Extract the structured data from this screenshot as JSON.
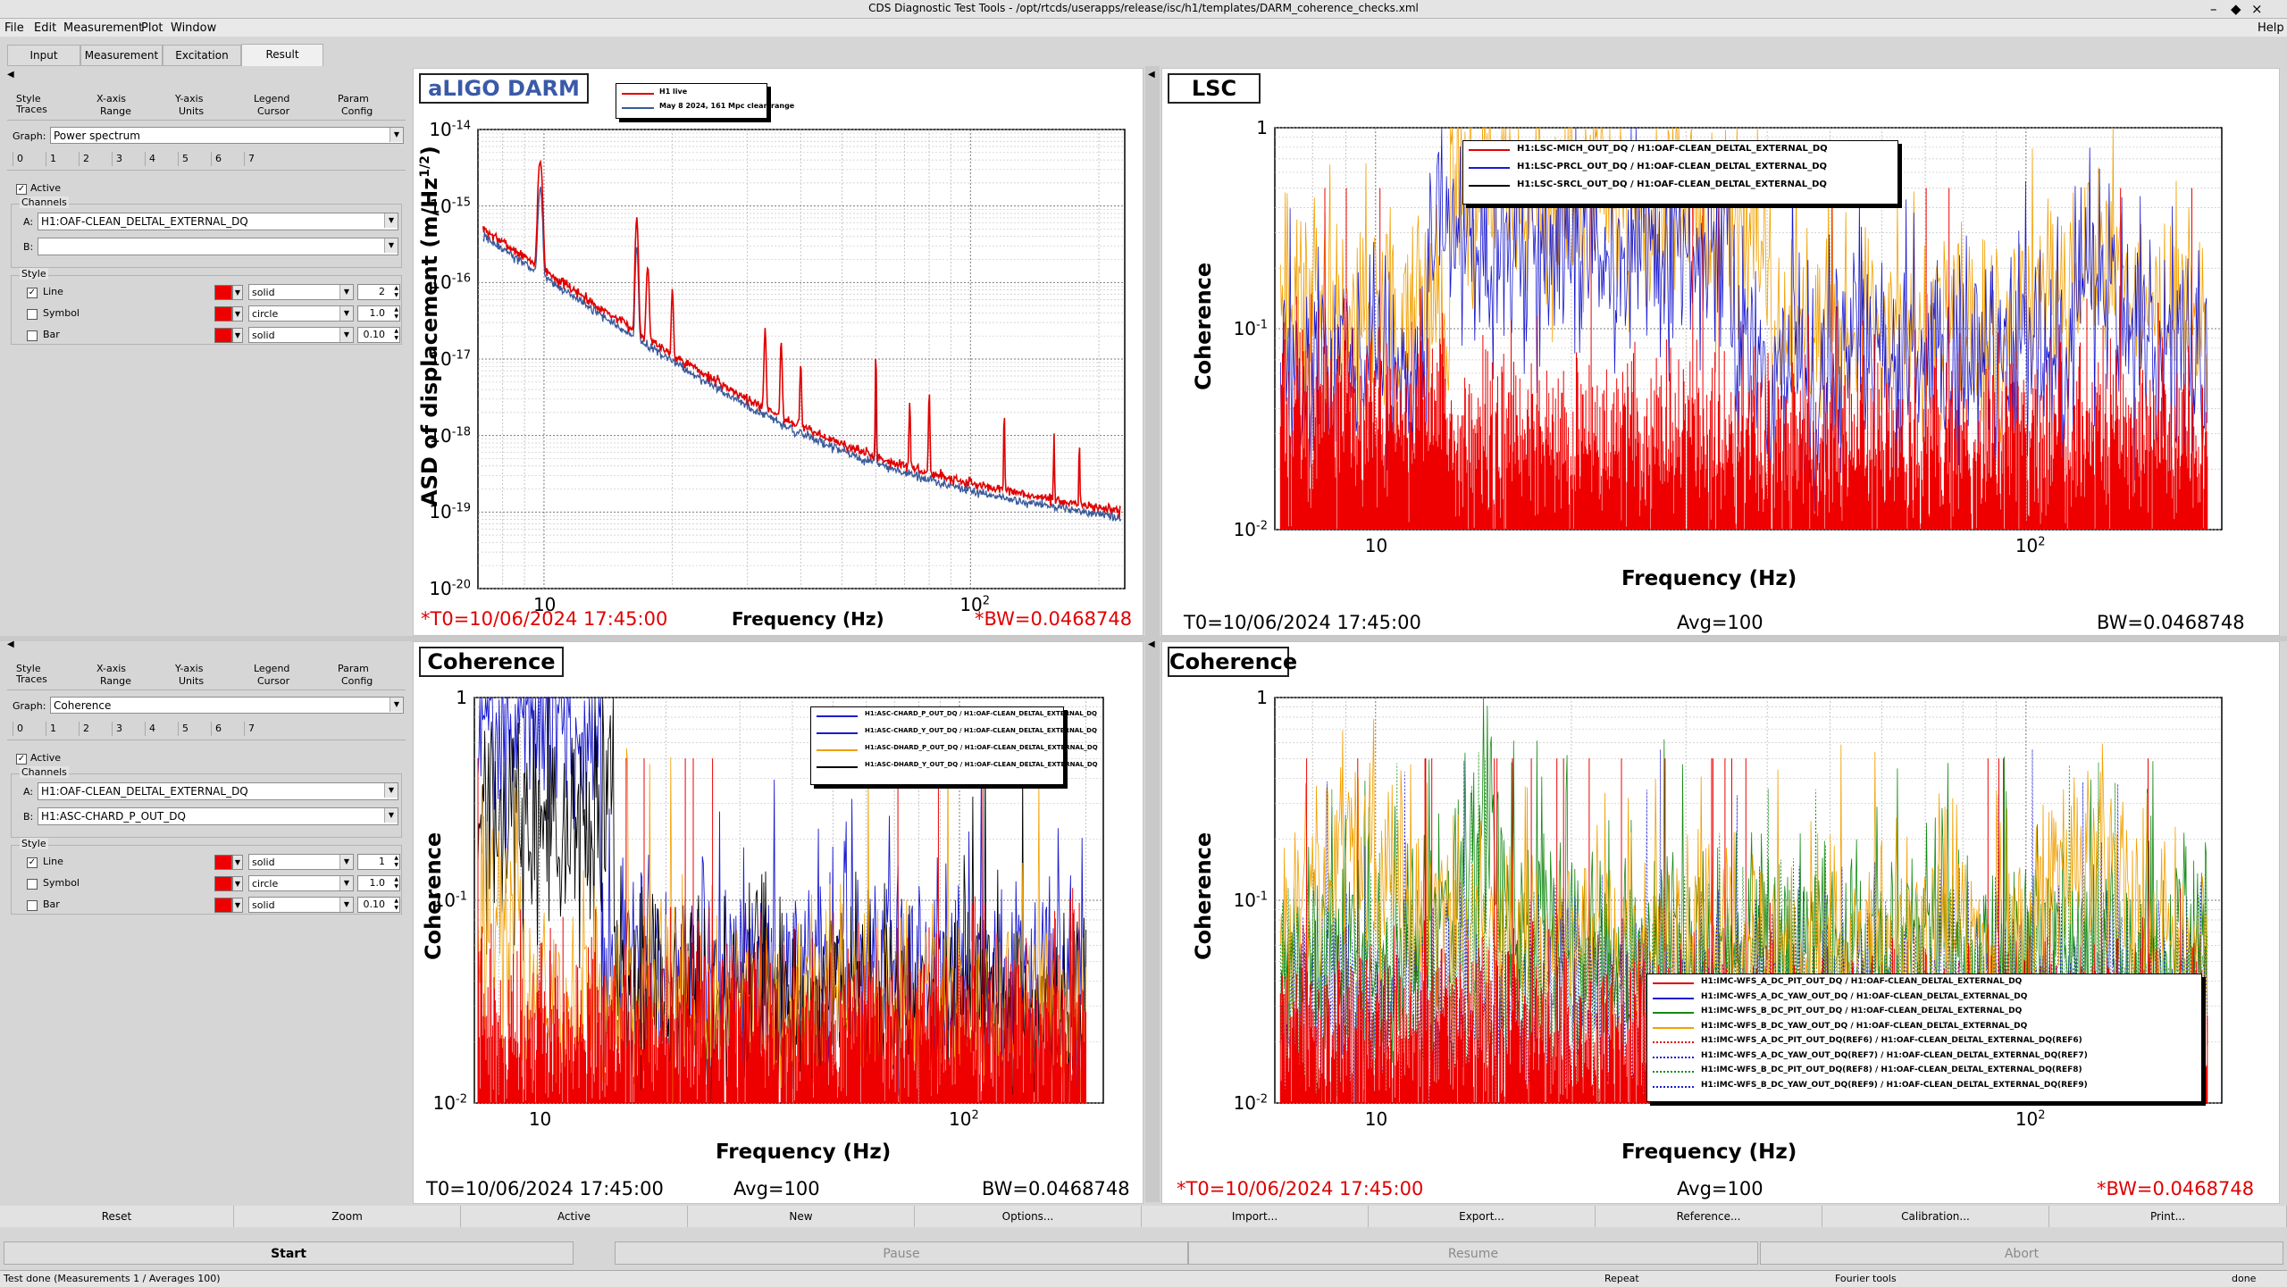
{
  "window": {
    "title": "CDS Diagnostic Test Tools - /opt/rtcds/userapps/release/isc/h1/templates/DARM_coherence_checks.xml"
  },
  "menu": [
    "File",
    "Edit",
    "Measurement",
    "Plot",
    "Window"
  ],
  "help": "Help",
  "tabs": [
    "Input",
    "Measurement",
    "Excitation",
    "Result"
  ],
  "options_panels": [
    {
      "tabs_top": [
        "Style",
        "X-axis",
        "Y-axis",
        "Legend",
        "Param"
      ],
      "tabs_bottom": [
        "Traces",
        "Range",
        "Units",
        "Cursor",
        "Config"
      ],
      "graph_label": "Graph:",
      "graph": "Power spectrum",
      "trace_numbers": [
        "0",
        "1",
        "2",
        "3",
        "4",
        "5",
        "6",
        "7"
      ],
      "active_label": "Active",
      "channels_label": "Channels",
      "a_label": "A:",
      "b_label": "B:",
      "channel_a": "H1:OAF-CLEAN_DELTAL_EXTERNAL_DQ",
      "channel_b": "",
      "style_label": "Style",
      "styles": [
        {
          "label": "Line",
          "type": "solid",
          "value": "2",
          "checked": true
        },
        {
          "label": "Symbol",
          "type": "circle",
          "value": "1.0",
          "checked": false
        },
        {
          "label": "Bar",
          "type": "solid",
          "value": "0.10",
          "checked": false
        }
      ]
    },
    {
      "tabs_top": [
        "Style",
        "X-axis",
        "Y-axis",
        "Legend",
        "Param"
      ],
      "tabs_bottom": [
        "Traces",
        "Range",
        "Units",
        "Cursor",
        "Config"
      ],
      "graph_label": "Graph:",
      "graph": "Coherence",
      "trace_numbers": [
        "0",
        "1",
        "2",
        "3",
        "4",
        "5",
        "6",
        "7"
      ],
      "active_label": "Active",
      "channels_label": "Channels",
      "a_label": "A:",
      "b_label": "B:",
      "channel_a": "H1:OAF-CLEAN_DELTAL_EXTERNAL_DQ",
      "channel_b": "H1:ASC-CHARD_P_OUT_DQ",
      "style_label": "Style",
      "styles": [
        {
          "label": "Line",
          "type": "solid",
          "value": "1",
          "checked": true
        },
        {
          "label": "Symbol",
          "type": "circle",
          "value": "1.0",
          "checked": false
        },
        {
          "label": "Bar",
          "type": "solid",
          "value": "0.10",
          "checked": false
        }
      ]
    }
  ],
  "plots": [
    {
      "title": "aLIGO DARM",
      "ylabel": "ASD of displacement (m/Hz",
      "ylabel_sup": "1/2",
      "ylabel_end": ")",
      "xlabel": "Frequency (Hz)",
      "yticks": [
        "10",
        "10",
        "10",
        "10",
        "10",
        "10",
        "10"
      ],
      "yexp": [
        "-14",
        "-15",
        "-16",
        "-17",
        "-18",
        "-19",
        "-20"
      ],
      "xticks": [
        "10",
        "10"
      ],
      "xexp": [
        "",
        "2"
      ],
      "t0": "*T0=10/06/2024 17:45:00",
      "avg": "",
      "bw": "*BW=0.0468748",
      "legend": [
        "H1 live",
        "May 8 2024, 161 Mpc clean range"
      ]
    },
    {
      "title": "LSC",
      "ylabel": "Coherence",
      "xlabel": "Frequency (Hz)",
      "yticks": [
        "1",
        "10",
        "10"
      ],
      "yexp": [
        "",
        "-1",
        "-2"
      ],
      "xticks": [
        "10",
        "10"
      ],
      "xexp": [
        "",
        "2"
      ],
      "t0": "T0=10/06/2024 17:45:00",
      "avg": "Avg=100",
      "bw": "BW=0.0468748",
      "legend": [
        "H1:LSC-MICH_OUT_DQ / H1:OAF-CLEAN_DELTAL_EXTERNAL_DQ",
        "H1:LSC-PRCL_OUT_DQ / H1:OAF-CLEAN_DELTAL_EXTERNAL_DQ",
        "H1:LSC-SRCL_OUT_DQ / H1:OAF-CLEAN_DELTAL_EXTERNAL_DQ"
      ]
    },
    {
      "title": "Coherence",
      "ylabel": "Coherence",
      "xlabel": "Frequency (Hz)",
      "yticks": [
        "1",
        "10",
        "10"
      ],
      "yexp": [
        "",
        "-1",
        "-2"
      ],
      "xticks": [
        "10",
        "10"
      ],
      "xexp": [
        "",
        "2"
      ],
      "t0": "T0=10/06/2024 17:45:00",
      "avg": "Avg=100",
      "bw": "BW=0.0468748",
      "legend": [
        "H1:ASC-CHARD_P_OUT_DQ / H1:OAF-CLEAN_DELTAL_EXTERNAL_DQ",
        "H1:ASC-CHARD_Y_OUT_DQ / H1:OAF-CLEAN_DELTAL_EXTERNAL_DQ",
        "H1:ASC-DHARD_P_OUT_DQ / H1:OAF-CLEAN_DELTAL_EXTERNAL_DQ",
        "H1:ASC-DHARD_Y_OUT_DQ / H1:OAF-CLEAN_DELTAL_EXTERNAL_DQ"
      ]
    },
    {
      "title": "Coherence",
      "ylabel": "Coherence",
      "xlabel": "Frequency (Hz)",
      "yticks": [
        "1",
        "10",
        "10"
      ],
      "yexp": [
        "",
        "-1",
        "-2"
      ],
      "xticks": [
        "10",
        "10"
      ],
      "xexp": [
        "",
        "2"
      ],
      "t0": "*T0=10/06/2024 17:45:00",
      "avg": "Avg=100",
      "bw": "*BW=0.0468748",
      "legend": [
        "H1:IMC-WFS_A_DC_PIT_OUT_DQ / H1:OAF-CLEAN_DELTAL_EXTERNAL_DQ",
        "H1:IMC-WFS_A_DC_YAW_OUT_DQ / H1:OAF-CLEAN_DELTAL_EXTERNAL_DQ",
        "H1:IMC-WFS_B_DC_PIT_OUT_DQ / H1:OAF-CLEAN_DELTAL_EXTERNAL_DQ",
        "H1:IMC-WFS_B_DC_YAW_OUT_DQ / H1:OAF-CLEAN_DELTAL_EXTERNAL_DQ",
        "H1:IMC-WFS_A_DC_PIT_OUT_DQ(REF6) / H1:OAF-CLEAN_DELTAL_EXTERNAL_DQ(REF6)",
        "H1:IMC-WFS_A_DC_YAW_OUT_DQ(REF7) / H1:OAF-CLEAN_DELTAL_EXTERNAL_DQ(REF7)",
        "H1:IMC-WFS_B_DC_PIT_OUT_DQ(REF8) / H1:OAF-CLEAN_DELTAL_EXTERNAL_DQ(REF8)",
        "H1:IMC-WFS_B_DC_YAW_OUT_DQ(REF9) / H1:OAF-CLEAN_DELTAL_EXTERNAL_DQ(REF9)"
      ]
    }
  ],
  "bottom_buttons": [
    "Reset",
    "Zoom",
    "Active",
    "New",
    "Options...",
    "Import...",
    "Export...",
    "Reference...",
    "Calibration...",
    "Print..."
  ],
  "start_buttons": [
    "Start",
    "Pause",
    "Resume",
    "Abort"
  ],
  "status": {
    "left": "Test done (Measurements 1 / Averages 100)",
    "repeat": "Repeat",
    "fourier": "Fourier tools",
    "done": "done"
  },
  "colors": {
    "red": "#e00000",
    "blue": "#1a1ad0",
    "orange": "#f2a000",
    "black": "#000000",
    "green": "#138a13",
    "darm_ref": "#3a5a9a"
  }
}
